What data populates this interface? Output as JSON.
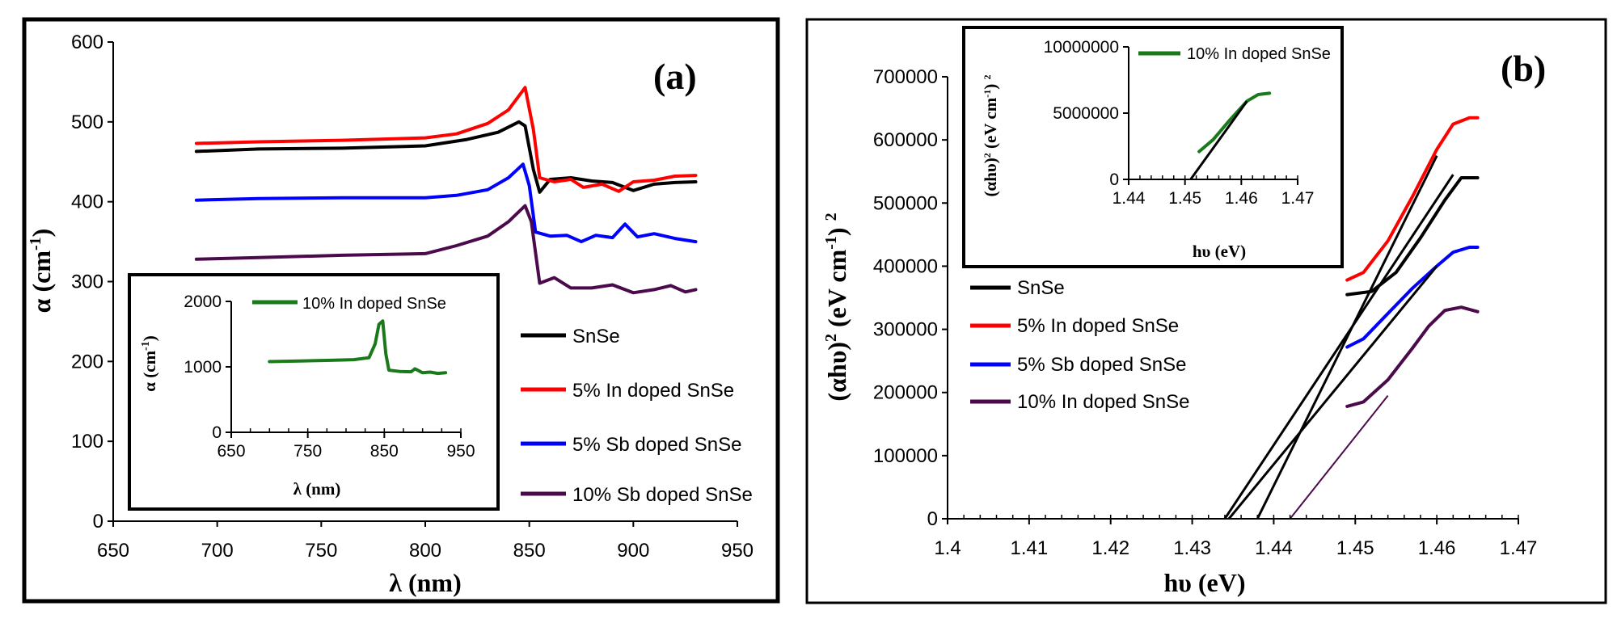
{
  "chart_data": [
    {
      "panel_label": "(a)",
      "type": "line",
      "xlabel": "λ (nm)",
      "ylabel_main": "α (cm",
      "ylabel_sup": "-1",
      "ylabel_close": ")",
      "xlim": [
        650,
        950
      ],
      "ylim": [
        0,
        600
      ],
      "x_ticks": [
        "650",
        "700",
        "750",
        "800",
        "850",
        "900",
        "950"
      ],
      "y_ticks": [
        "0",
        "100",
        "200",
        "300",
        "400",
        "500",
        "600"
      ],
      "legend_position": "right",
      "series": [
        {
          "name": "SnSe",
          "color": "#000000",
          "x": [
            690,
            720,
            760,
            800,
            820,
            835,
            845,
            848,
            852,
            855,
            860,
            870,
            880,
            890,
            900,
            910,
            920,
            930
          ],
          "y": [
            463,
            466,
            467,
            470,
            478,
            487,
            500,
            495,
            440,
            412,
            428,
            430,
            426,
            424,
            414,
            422,
            424,
            425
          ]
        },
        {
          "name": "5% In doped SnSe",
          "color": "#ff0000",
          "x": [
            690,
            720,
            760,
            800,
            815,
            830,
            840,
            848,
            852,
            855,
            862,
            870,
            876,
            885,
            893,
            900,
            910,
            920,
            930
          ],
          "y": [
            473,
            475,
            477,
            480,
            485,
            498,
            515,
            543,
            490,
            430,
            425,
            428,
            418,
            422,
            413,
            425,
            427,
            432,
            433
          ]
        },
        {
          "name": "5% Sb doped SnSe",
          "color": "#0000ff",
          "x": [
            690,
            720,
            760,
            800,
            815,
            830,
            840,
            847,
            850,
            853,
            860,
            868,
            875,
            882,
            890,
            896,
            902,
            910,
            920,
            930
          ],
          "y": [
            402,
            404,
            405,
            405,
            408,
            415,
            430,
            447,
            420,
            362,
            357,
            358,
            350,
            358,
            355,
            372,
            356,
            360,
            354,
            350
          ]
        },
        {
          "name": "10% Sb doped SnSe",
          "color": "#4b0a4b",
          "x": [
            690,
            720,
            760,
            800,
            815,
            830,
            840,
            848,
            851,
            855,
            862,
            870,
            880,
            890,
            900,
            910,
            918,
            925,
            930
          ],
          "y": [
            328,
            330,
            333,
            335,
            345,
            357,
            375,
            395,
            375,
            298,
            305,
            292,
            292,
            296,
            286,
            290,
            295,
            287,
            290
          ]
        }
      ],
      "inset": {
        "type": "line",
        "xlabel": "λ (nm)",
        "ylabel_main": "α (cm",
        "ylabel_sup": "-1",
        "ylabel_close": ")",
        "xlim": [
          650,
          950
        ],
        "ylim": [
          0,
          2000
        ],
        "x_ticks": [
          "650",
          "750",
          "850",
          "950"
        ],
        "y_ticks": [
          "0",
          "1000",
          "2000"
        ],
        "series": [
          {
            "name": "10% In doped SnSe",
            "color": "#1a7a1a",
            "x": [
              700,
              740,
              780,
              810,
              830,
              838,
              843,
              848,
              852,
              856,
              870,
              885,
              890,
              900,
              910,
              920,
              930
            ],
            "y": [
              1080,
              1090,
              1100,
              1110,
              1140,
              1350,
              1650,
              1700,
              1200,
              950,
              930,
              925,
              970,
              910,
              920,
              900,
              910
            ]
          }
        ]
      }
    },
    {
      "panel_label": "(b)",
      "type": "line",
      "xlabel": "hυ (eV)",
      "ylabel_main": "(αhυ)",
      "ylabel_sup": "2",
      "ylabel_rest": " (eV cm",
      "ylabel_sup2": "-1",
      "ylabel_close": ") ",
      "ylabel_sup3": "2",
      "xlim": [
        1.4,
        1.47
      ],
      "ylim": [
        0,
        700000
      ],
      "x_ticks": [
        "1.4",
        "1.41",
        "1.42",
        "1.43",
        "1.44",
        "1.45",
        "1.46",
        "1.47"
      ],
      "y_ticks": [
        "0",
        "100000",
        "200000",
        "300000",
        "400000",
        "500000",
        "600000",
        "700000"
      ],
      "legend_position": "left",
      "series": [
        {
          "name": "SnSe",
          "color": "#000000",
          "x": [
            1.449,
            1.452,
            1.455,
            1.458,
            1.461,
            1.463,
            1.465
          ],
          "y": [
            355000,
            360000,
            390000,
            445000,
            505000,
            540000,
            540000
          ]
        },
        {
          "name": "5% In doped SnSe",
          "color": "#ff0000",
          "x": [
            1.449,
            1.451,
            1.454,
            1.457,
            1.46,
            1.462,
            1.464,
            1.465
          ],
          "y": [
            378000,
            390000,
            440000,
            510000,
            585000,
            625000,
            635000,
            635000
          ]
        },
        {
          "name": "5% Sb doped SnSe",
          "color": "#0000ff",
          "x": [
            1.449,
            1.451,
            1.454,
            1.457,
            1.46,
            1.462,
            1.464,
            1.465
          ],
          "y": [
            272000,
            285000,
            325000,
            365000,
            400000,
            422000,
            430000,
            430000
          ]
        },
        {
          "name": "10% In doped SnSe",
          "color": "#4b0a4b",
          "x": [
            1.449,
            1.451,
            1.454,
            1.457,
            1.459,
            1.461,
            1.463,
            1.465
          ],
          "y": [
            178000,
            185000,
            220000,
            270000,
            305000,
            330000,
            335000,
            328000
          ]
        }
      ],
      "fit_lines": [
        {
          "color": "#000000",
          "x": [
            1.438,
            1.46
          ],
          "y": [
            0,
            575000
          ]
        },
        {
          "color": "#000000",
          "x": [
            1.434,
            1.462
          ],
          "y": [
            0,
            545000
          ]
        },
        {
          "color": "#000000",
          "x": [
            1.4345,
            1.46
          ],
          "y": [
            0,
            400000
          ]
        },
        {
          "color": "#4b0a4b",
          "x": [
            1.442,
            1.454
          ],
          "y": [
            0,
            195000
          ]
        }
      ],
      "inset": {
        "type": "line",
        "xlabel": "hυ (eV)",
        "ylabel_main": "(αhυ)",
        "ylabel_sup": "2",
        "ylabel_rest": " (eV cm",
        "ylabel_sup2": "-1",
        "ylabel_close": ") ",
        "ylabel_sup3": "2",
        "xlim": [
          1.44,
          1.47
        ],
        "ylim": [
          0,
          10000000
        ],
        "x_ticks": [
          "1.44",
          "1.45",
          "1.46",
          "1.47"
        ],
        "y_ticks": [
          "0",
          "5000000",
          "10000000"
        ],
        "series": [
          {
            "name": "10% In doped SnSe",
            "color": "#1a7a1a",
            "x": [
              1.4525,
              1.455,
              1.458,
              1.461,
              1.463,
              1.465
            ],
            "y": [
              2100000,
              3000000,
              4500000,
              5900000,
              6400000,
              6500000
            ]
          }
        ],
        "fit_lines": [
          {
            "color": "#000000",
            "x": [
              1.451,
              1.461
            ],
            "y": [
              0,
              5900000
            ]
          }
        ]
      }
    }
  ]
}
